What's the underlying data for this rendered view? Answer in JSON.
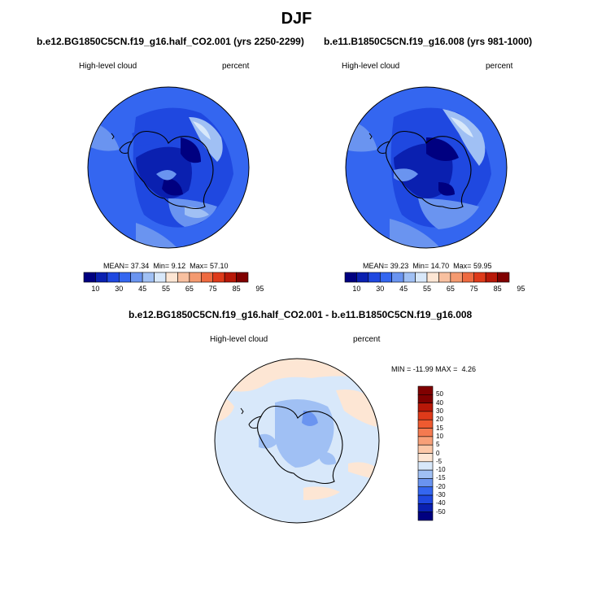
{
  "figure": {
    "title": "DJF",
    "panel1": {
      "case": "b.e12.BG1850C5CN.f19_g16.half_CO2.001 (yrs 2250-2299)",
      "field": "High-level cloud",
      "units": "percent",
      "stats": {
        "mean_label": "MEAN=",
        "mean": "37.34",
        "min_label": "Min=",
        "min": "9.12",
        "max_label": "Max=",
        "max": "57.10"
      }
    },
    "panel2": {
      "case": "b.e11.B1850C5CN.f19_g16.008 (yrs 981-1000)",
      "field": "High-level cloud",
      "units": "percent",
      "stats": {
        "mean_label": "MEAN=",
        "mean": "39.23",
        "min_label": "Min=",
        "min": "14.70",
        "max_label": "Max=",
        "max": "59.95"
      }
    },
    "panel3": {
      "case": "b.e12.BG1850C5CN.f19_g16.half_CO2.001 - b.e11.B1850C5CN.f19_g16.008",
      "field": "High-level cloud",
      "units": "percent",
      "stats": {
        "min_label": "MIN =",
        "min": "-11.99",
        "max_label": "MAX =",
        "max": "4.26"
      }
    },
    "colorbar_main": {
      "labels": [
        "10",
        "30",
        "45",
        "55",
        "65",
        "75",
        "85",
        "95"
      ],
      "colors": [
        "#000080",
        "#0a20b0",
        "#1f48e0",
        "#3466f0",
        "#6a94f0",
        "#a0c0f4",
        "#d8e8fa",
        "#fde6d4",
        "#f8c0a0",
        "#f49a70",
        "#ee6a40",
        "#de3a1a",
        "#b81808",
        "#800000"
      ]
    },
    "colorbar_diff": {
      "labels": [
        "50",
        "40",
        "30",
        "20",
        "15",
        "10",
        "5",
        "0",
        "-5",
        "-10",
        "-15",
        "-20",
        "-30",
        "-40",
        "-50"
      ],
      "colors": [
        "#800000",
        "#b81808",
        "#de3a1a",
        "#ee5a30",
        "#f47a50",
        "#f8a078",
        "#fcc8a8",
        "#fde6d4",
        "#d8e8fa",
        "#a0c0f4",
        "#6a94f0",
        "#3466f0",
        "#1f48e0",
        "#0a20b0",
        "#000080"
      ]
    }
  }
}
